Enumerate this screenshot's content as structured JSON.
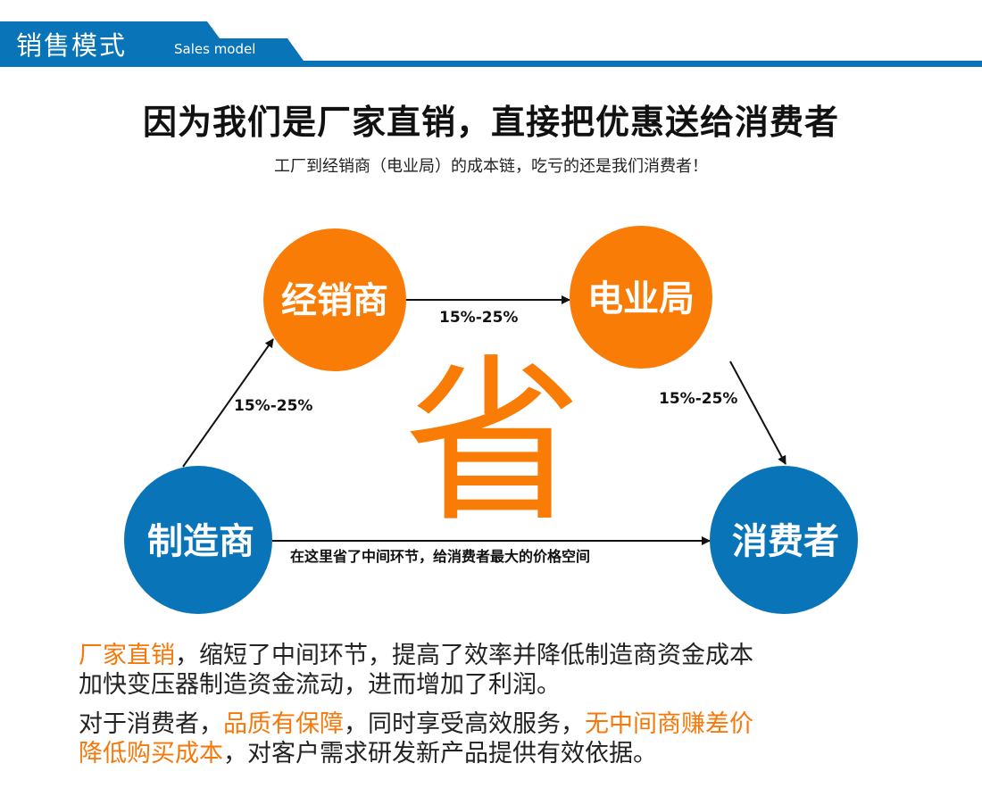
{
  "header": {
    "title": "销售模式",
    "subtitle": "Sales model"
  },
  "headline": "因为我们是厂家直销，直接把优惠送给消费者",
  "subline": "工厂到经销商（电业局）的成本链，吃亏的还是我们消费者！",
  "colors": {
    "blue": "#0a74b9",
    "orange": "#f97c06"
  },
  "diagram": {
    "nodes": {
      "dealer": "经销商",
      "power_bureau": "电业局",
      "manufacturer": "制造商",
      "consumer": "消费者"
    },
    "center_char": "省",
    "edges": {
      "manufacturer_to_dealer": "15%-25%",
      "dealer_to_power_bureau": "15%-25%",
      "power_bureau_to_consumer": "15%-25%",
      "manufacturer_to_consumer": "在这里省了中间环节，给消费者最大的价格空间"
    }
  },
  "paragraphs": {
    "p1": {
      "hl": "厂家直销",
      "text1": "，缩短了中间环节，提高了效率并降低制造商资金成本",
      "line2": "加快变压器制造资金流动，进而增加了利润。"
    },
    "p2": {
      "text1": "对于消费者，",
      "hl1": "品质有保障",
      "text2": "，同时享受高效服务，",
      "hl2": "无中间商赚差价",
      "hl3": "降低购买成本",
      "text3": "，对客户需求研发新产品提供有效依据。"
    }
  }
}
